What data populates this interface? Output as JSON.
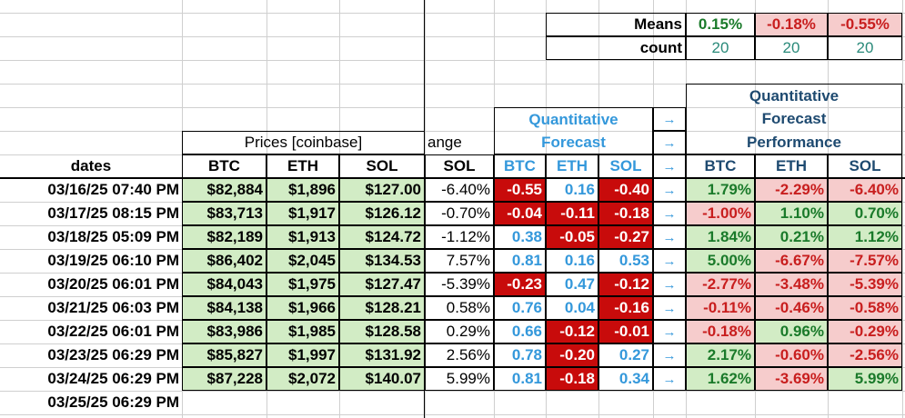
{
  "summary": {
    "means_label": "Means",
    "count_label": "count",
    "means": [
      "0.15%",
      "-0.18%",
      "-0.55%"
    ],
    "count": [
      "20",
      "20",
      "20"
    ]
  },
  "headers": {
    "prices_group": "Prices [coinbase]",
    "change_partial": "ange",
    "forecast_title1": "Quantitative",
    "forecast_title2": "Forecast",
    "perf_title1": "Quantitative",
    "perf_title2": "Forecast",
    "perf_title3": "Performance",
    "arrow": "→",
    "dates": "dates",
    "btc": "BTC",
    "eth": "ETH",
    "sol": "SOL"
  },
  "rows": [
    {
      "date": "03/16/25 07:40 PM",
      "btc": "$82,884",
      "eth": "$1,896",
      "sol": "$127.00",
      "chg": "-6.40%",
      "f": [
        "-0.55",
        "0.16",
        "-0.40"
      ],
      "p": [
        "1.79%",
        "-2.29%",
        "-6.40%"
      ]
    },
    {
      "date": "03/17/25 08:15 PM",
      "btc": "$83,713",
      "eth": "$1,917",
      "sol": "$126.12",
      "chg": "-0.70%",
      "f": [
        "-0.04",
        "-0.11",
        "-0.18"
      ],
      "p": [
        "-1.00%",
        "1.10%",
        "0.70%"
      ]
    },
    {
      "date": "03/18/25 05:09 PM",
      "btc": "$82,189",
      "eth": "$1,913",
      "sol": "$124.72",
      "chg": "-1.12%",
      "f": [
        "0.38",
        "-0.05",
        "-0.27"
      ],
      "p": [
        "1.84%",
        "0.21%",
        "1.12%"
      ]
    },
    {
      "date": "03/19/25 06:10 PM",
      "btc": "$86,402",
      "eth": "$2,045",
      "sol": "$134.53",
      "chg": "7.57%",
      "f": [
        "0.81",
        "0.16",
        "0.53"
      ],
      "p": [
        "5.00%",
        "-6.67%",
        "-7.57%"
      ]
    },
    {
      "date": "03/20/25 06:01 PM",
      "btc": "$84,043",
      "eth": "$1,975",
      "sol": "$127.47",
      "chg": "-5.39%",
      "f": [
        "-0.23",
        "0.47",
        "-0.12"
      ],
      "p": [
        "-2.77%",
        "-3.48%",
        "-5.39%"
      ]
    },
    {
      "date": "03/21/25 06:03 PM",
      "btc": "$84,138",
      "eth": "$1,966",
      "sol": "$128.21",
      "chg": "0.58%",
      "f": [
        "0.76",
        "0.04",
        "-0.16"
      ],
      "p": [
        "-0.11%",
        "-0.46%",
        "-0.58%"
      ]
    },
    {
      "date": "03/22/25 06:01 PM",
      "btc": "$83,986",
      "eth": "$1,985",
      "sol": "$128.58",
      "chg": "0.29%",
      "f": [
        "0.66",
        "-0.12",
        "-0.01"
      ],
      "p": [
        "-0.18%",
        "0.96%",
        "-0.29%"
      ]
    },
    {
      "date": "03/23/25 06:29 PM",
      "btc": "$85,827",
      "eth": "$1,997",
      "sol": "$131.92",
      "chg": "2.56%",
      "f": [
        "0.78",
        "-0.20",
        "0.27"
      ],
      "p": [
        "2.17%",
        "-0.60%",
        "-2.56%"
      ]
    },
    {
      "date": "03/24/25 06:29 PM",
      "btc": "$87,228",
      "eth": "$2,072",
      "sol": "$140.07",
      "chg": "5.99%",
      "f": [
        "0.81",
        "-0.18",
        "0.34"
      ],
      "p": [
        "1.62%",
        "-3.69%",
        "5.99%"
      ]
    },
    {
      "date": "03/25/25 06:29 PM"
    }
  ]
}
